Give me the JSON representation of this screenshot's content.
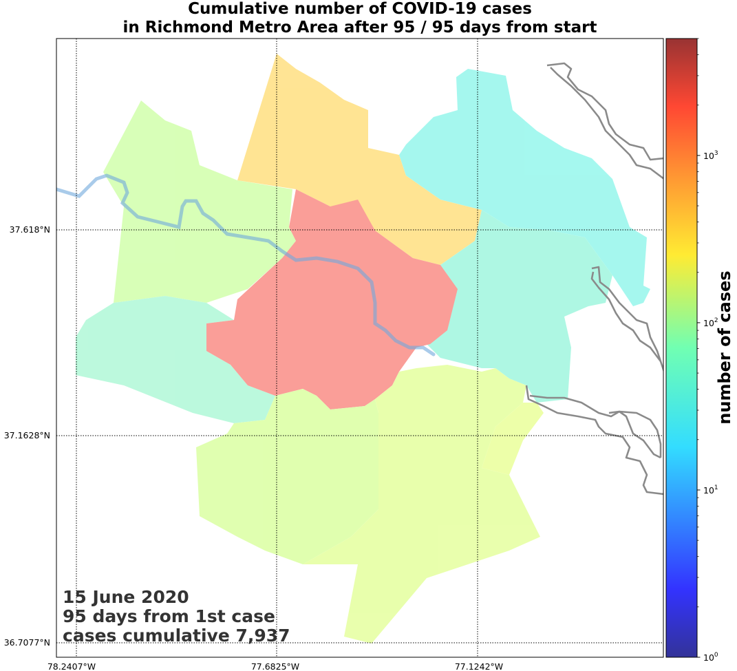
{
  "title": {
    "line1": "Cumulative number of COVID-19 cases",
    "line2": "in Richmond Metro Area after 95 / 95 days from start"
  },
  "annotation": {
    "date": "15 June 2020",
    "days": "95 days from 1st case",
    "cumulative": "cases cumulative 7,937"
  },
  "axes": {
    "longitude_labels": [
      "78.2407°W",
      "77.6825°W",
      "77.1242°W"
    ],
    "latitude_labels": [
      "37.618°N",
      "37.1628°N",
      "36.7077°N"
    ]
  },
  "colorbar": {
    "label": "number of cases",
    "scale": "log",
    "colormap": "jet",
    "range": [
      1,
      5000
    ],
    "tick_values": [
      1,
      10,
      100,
      1000
    ],
    "tick_base": "10",
    "tick_exponents": [
      "0",
      "1",
      "2",
      "3"
    ]
  },
  "regions": [
    {
      "id": "henrico-richmond",
      "cases": 3500,
      "color": "#f8766d"
    },
    {
      "id": "hanover",
      "cases": 450,
      "color": "#ffd966"
    },
    {
      "id": "new-kent-king-william",
      "cases": 25,
      "color": "#7ff5e8"
    },
    {
      "id": "goochland",
      "cases": 150,
      "color": "#c8ff9a"
    },
    {
      "id": "powhatan",
      "cases": 55,
      "color": "#9ff7cf"
    },
    {
      "id": "amelia",
      "cases": 35,
      "color": "#7df0d2"
    },
    {
      "id": "chesterfield",
      "cases": 180,
      "color": "#d3ff8e"
    },
    {
      "id": "charles-city",
      "cases": 45,
      "color": "#8cf5d8"
    },
    {
      "id": "dinwiddie",
      "cases": 200,
      "color": "#dfff8a"
    },
    {
      "id": "prince-george",
      "cases": 210,
      "color": "#e6ff85"
    }
  ],
  "colors": {
    "grid": "#000000",
    "river": "#6fa8dc",
    "coastline": "#8a8a8a"
  }
}
